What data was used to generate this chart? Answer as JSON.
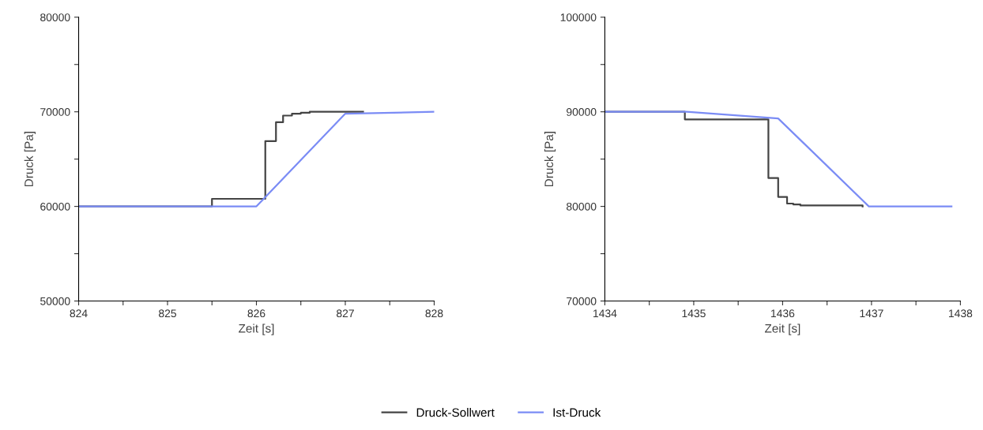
{
  "chart_data": [
    {
      "type": "line",
      "xlabel": "Zeit [s]",
      "ylabel": "Druck [Pa]",
      "xlim": [
        824,
        828
      ],
      "ylim": [
        50000,
        80000
      ],
      "xticks": [
        824,
        {
          "value": 824.5,
          "label": null
        },
        825,
        {
          "value": 825.5,
          "label": null
        },
        826,
        {
          "value": 826.5,
          "label": null
        },
        827,
        {
          "value": 827.5,
          "label": null
        },
        828
      ],
      "yticks": [
        50000,
        {
          "value": 55000,
          "label": null
        },
        60000,
        {
          "value": 65000,
          "label": null
        },
        70000,
        {
          "value": 75000,
          "label": null
        },
        80000
      ],
      "legend": "bottom",
      "grid": false,
      "series": [
        {
          "name": "Druck-Sollwert",
          "type": "step",
          "color": "#444444",
          "x": [
            824,
            825.5,
            826.1,
            826.22,
            826.3,
            826.4,
            826.5,
            826.6,
            827.2
          ],
          "values": [
            60000,
            60800,
            66900,
            68900,
            69600,
            69800,
            69900,
            70000,
            70000
          ]
        },
        {
          "name": "Ist-Druck",
          "color": "#7b8cf5",
          "x": [
            824,
            826.0,
            827.0,
            828
          ],
          "values": [
            60000,
            60000,
            69800,
            70000
          ]
        }
      ]
    },
    {
      "type": "line",
      "xlabel": "Zeit [s]",
      "ylabel": "Druck [Pa]",
      "xlim": [
        1434,
        1438
      ],
      "ylim": [
        70000,
        100000
      ],
      "xticks": [
        1434,
        {
          "value": 1434.5,
          "label": null
        },
        1435,
        {
          "value": 1435.5,
          "label": null
        },
        1436,
        {
          "value": 1436.5,
          "label": null
        },
        1437,
        {
          "value": 1437.5,
          "label": null
        },
        1438
      ],
      "yticks": [
        70000,
        {
          "value": 75000,
          "label": null
        },
        80000,
        {
          "value": 85000,
          "label": null
        },
        90000,
        {
          "value": 95000,
          "label": null
        },
        100000
      ],
      "grid": false,
      "series": [
        {
          "name": "Druck-Sollwert",
          "type": "step",
          "color": "#444444",
          "x": [
            1434,
            1434.9,
            1435.84,
            1435.95,
            1436.05,
            1436.12,
            1436.2,
            1436.9
          ],
          "values": [
            90000,
            89200,
            83000,
            81000,
            80300,
            80200,
            80100,
            80000
          ]
        },
        {
          "name": "Ist-Druck",
          "color": "#7b8cf5",
          "x": [
            1434,
            1434.92,
            1435.95,
            1436.97,
            1437.9
          ],
          "values": [
            90000,
            90000,
            89300,
            80000,
            80000
          ]
        }
      ]
    }
  ]
}
